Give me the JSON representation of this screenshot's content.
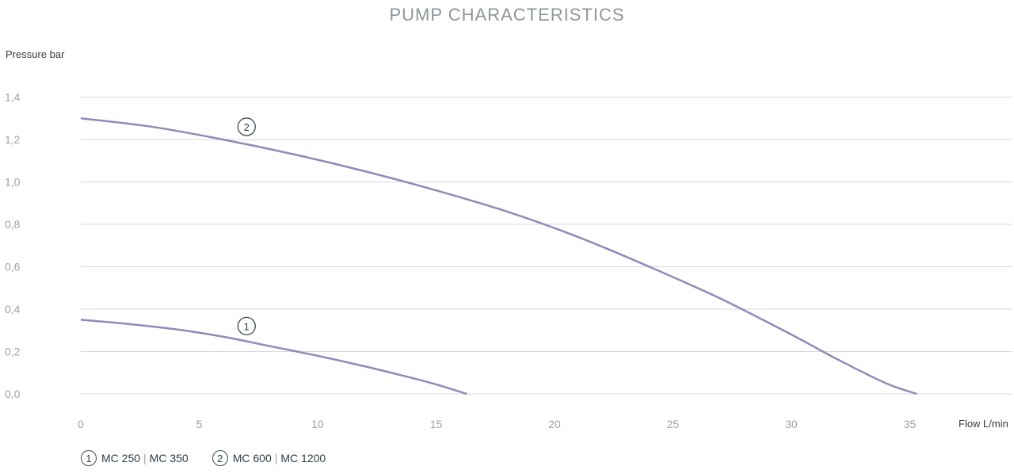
{
  "chart_data": {
    "type": "line",
    "title": "PUMP CHARACTERISTICS",
    "ylabel": "Pressure bar",
    "xlabel": "Flow L/min",
    "xlim": [
      0,
      37
    ],
    "ylim": [
      0,
      1.4
    ],
    "x_ticks": [
      0,
      5,
      10,
      15,
      20,
      25,
      30,
      35
    ],
    "x_tick_labels": [
      "0",
      "5",
      "10",
      "15",
      "20",
      "25",
      "30",
      "35"
    ],
    "y_ticks": [
      0,
      0.2,
      0.4,
      0.6,
      0.8,
      1.0,
      1.2,
      1.4
    ],
    "y_tick_labels": [
      "0,0",
      "0,2",
      "0,4",
      "0,6",
      "0,8",
      "1,0",
      "1,2",
      "1,4"
    ],
    "grid": true,
    "series": [
      {
        "marker": "1",
        "color": "#8e8bb8",
        "x": [
          0,
          2,
          4,
          6,
          8,
          10,
          12,
          14,
          15,
          16.3
        ],
        "y": [
          0.35,
          0.33,
          0.305,
          0.27,
          0.225,
          0.18,
          0.13,
          0.075,
          0.045,
          0.0
        ]
      },
      {
        "marker": "2",
        "color": "#8e8bb8",
        "x": [
          0,
          3,
          6,
          9,
          12,
          15,
          18,
          21,
          24,
          27,
          30,
          32,
          34,
          35.3
        ],
        "y": [
          1.3,
          1.26,
          1.2,
          1.13,
          1.05,
          0.96,
          0.86,
          0.74,
          0.6,
          0.45,
          0.28,
          0.16,
          0.05,
          0.0
        ]
      }
    ],
    "annotations": [
      {
        "text": "2",
        "x": 7,
        "y": 1.26
      },
      {
        "text": "1",
        "x": 7,
        "y": 0.32
      }
    ],
    "legend": {
      "items": [
        {
          "num": "1",
          "model_a": "MC 250",
          "sep": "|",
          "model_b": "MC 350"
        },
        {
          "num": "2",
          "model_a": "MC 600",
          "sep": "|",
          "model_b": "MC 1200"
        }
      ]
    }
  }
}
